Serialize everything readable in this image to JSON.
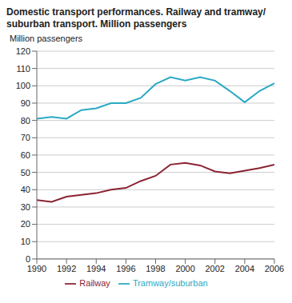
{
  "chart_data": {
    "type": "line",
    "title": "Domestic transport performances. Railway and tramway/ suburban transport. Million passengers",
    "y_label": "Million passengers",
    "x": [
      1990,
      1991,
      1992,
      1993,
      1994,
      1995,
      1996,
      1997,
      1998,
      1999,
      2000,
      2001,
      2002,
      2003,
      2004,
      2005,
      2006
    ],
    "series": [
      {
        "name": "Tramway/suburban",
        "color": "#2aa9c4",
        "values": [
          81,
          82,
          81,
          86,
          87,
          90,
          90,
          93,
          101,
          105,
          103,
          105,
          103,
          97,
          90.5,
          97,
          101.5
        ]
      },
      {
        "name": "Railway",
        "color": "#8b2332",
        "values": [
          34,
          33,
          36,
          37,
          38,
          40,
          41,
          45,
          48,
          54.5,
          55.5,
          54,
          50.5,
          49.5,
          51,
          52.5,
          54.5
        ]
      }
    ],
    "xlim": [
      1990,
      2006
    ],
    "xticks": [
      1990,
      1992,
      1994,
      1996,
      1998,
      2000,
      2002,
      2004,
      2006
    ],
    "ylim": [
      0,
      120
    ],
    "yticks": [
      0,
      10,
      20,
      30,
      40,
      50,
      60,
      70,
      80,
      90,
      100,
      110,
      120
    ],
    "grid": true,
    "legend": "bottom"
  }
}
